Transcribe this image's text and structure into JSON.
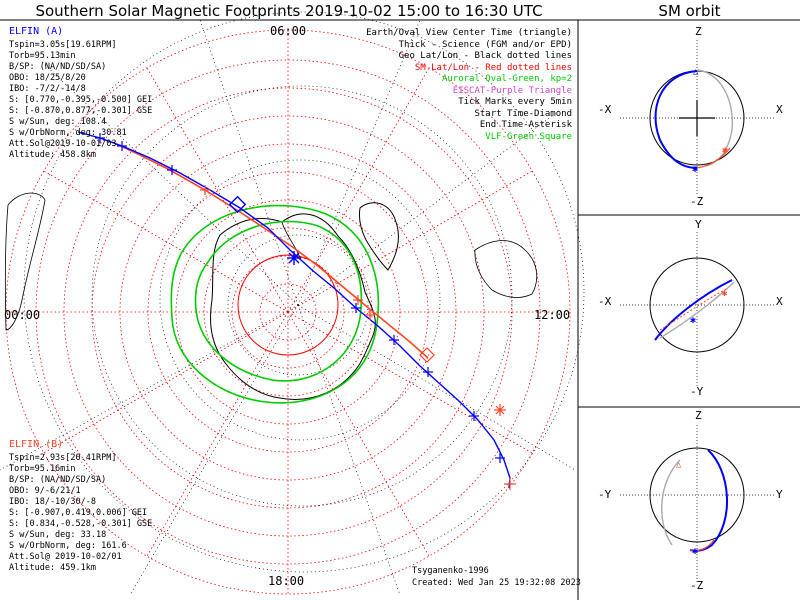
{
  "title": "Southern Solar Magnetic Footprints 2019-10-02 15:00 to 16:30 UTC",
  "sm_orbit": {
    "title": "SM orbit",
    "panels": [
      {
        "top": "Z",
        "bottom": "-Z",
        "left": "-X",
        "right": "X"
      },
      {
        "top": "Y",
        "bottom": "-Y",
        "left": "-X",
        "right": "X"
      },
      {
        "top": "Z",
        "bottom": "-Z",
        "left": "-Y",
        "right": "Y"
      }
    ]
  },
  "hour_labels": {
    "top": "06:00",
    "left": "00:00",
    "right": "12:00",
    "bottom": "18:00"
  },
  "legend": [
    {
      "text": "Earth/Oval View Center Time (triangle)",
      "color": "#000000"
    },
    {
      "text": "Thick - Science (FGM and/or EPD)",
      "color": "#000000"
    },
    {
      "text": "Geo Lat/Lon - Black dotted lines",
      "color": "#000000"
    },
    {
      "text": "SM Lat/Lon - Red dotted lines",
      "color": "#ff0000"
    },
    {
      "text": "Auroral Oval-Green, kp=2",
      "color": "#00cc00"
    },
    {
      "text": "EISCAT-Purple Triangle",
      "color": "#cc44cc"
    },
    {
      "text": "Tick Marks every 5min",
      "color": "#000000"
    },
    {
      "text": "Start Time-Diamond",
      "color": "#000000"
    },
    {
      "text": "End Time-Asterisk",
      "color": "#000000"
    },
    {
      "text": "VLF-Green Square",
      "color": "#00cc00"
    }
  ],
  "elfin_a": {
    "name": "ELFIN (A)",
    "color": "#0000ff",
    "lines": [
      "Tspin=3.05s[19.61RPM]",
      "Torb=95.13min",
      "B/SP: (NA/ND/SD/SA)",
      "OBO: 18/25/8/20",
      "IBO: -7/2/-14/8",
      "S: [0.770,-0.395,-0.500] GEI",
      "S: [-0.870,0.877,-0.301] GSE",
      "S w/Sun, deg: 108.4",
      "S w/OrbNorm, deg: 30.81",
      "Att.Sol@2019-10-01/03",
      "Altitude: 458.8km"
    ]
  },
  "elfin_b": {
    "name": "ELFIN (B)",
    "color": "#ff4422",
    "lines": [
      "Tspin=2.93s[20.41RPM]",
      "Torb=95.16min",
      "B/SP: (NA/ND/SD/SA)",
      "OBO: 9/-6/21/1",
      "IBO: 18/-10/30/-8",
      "S: [-0.907,0.419,0.006] GEI",
      "S: [0.834,-0.528,-0.301] GSE",
      "S w/Sun, deg: 33.18",
      "S w/OrbNorm, deg: 161.6",
      "Att.Sol@ 2019-10-02/01",
      "Altitude: 459.1km"
    ]
  },
  "credit": "Tsyganenko-1996",
  "created": "Created: Wed Jan 25 19:32:08 2023",
  "colors": {
    "elfin_a": "#0000ff",
    "elfin_b": "#ff4422",
    "oval": "#00cc00",
    "sm_grid": "#ff0000",
    "geo_grid": "#000000"
  }
}
